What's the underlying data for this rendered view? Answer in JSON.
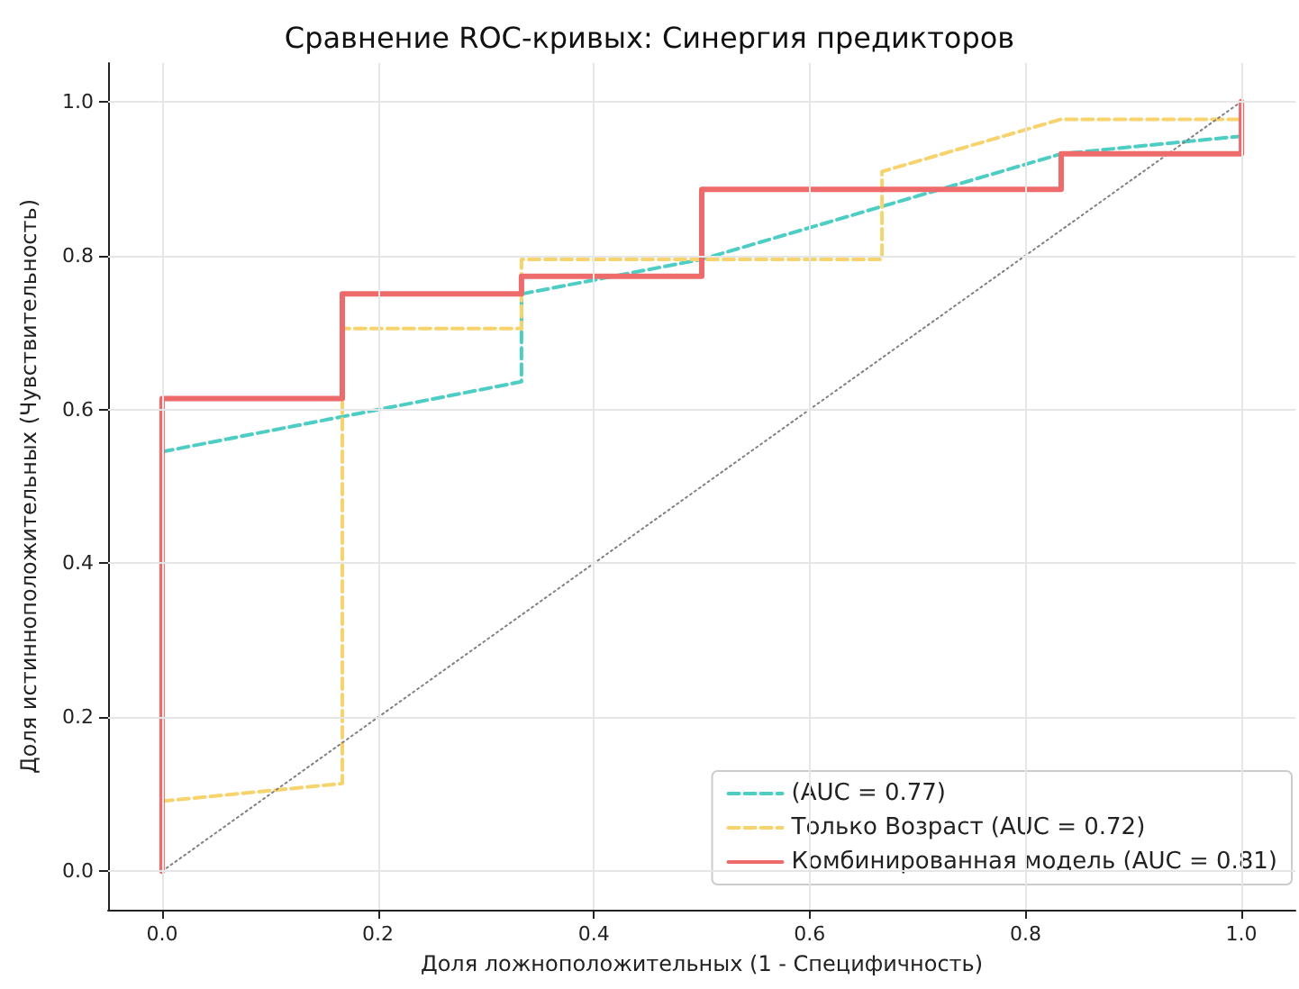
{
  "chart_data": {
    "type": "line",
    "title": "Сравнение ROC-кривых: Синергия предикторов",
    "xlabel": "Доля ложноположительных (1 - Специфичность)",
    "ylabel": "Доля истинноположительных (Чувствительность)",
    "series": [
      {
        "name": "(AUC = 0.77)",
        "color": "#4ecdc4",
        "line_style": "dashed",
        "x": [
          0,
          0.333,
          0.333,
          0.5,
          0.833,
          1
        ],
        "values": [
          0.545,
          0.636,
          0.75,
          0.795,
          0.932,
          0.955
        ]
      },
      {
        "name": "Только Возраст (AUC = 0.72)",
        "color": "#f7d36e",
        "line_style": "dashed",
        "x": [
          0,
          0.167,
          0.167,
          0.333,
          0.333,
          0.667,
          0.667,
          0.833,
          1
        ],
        "values": [
          0.091,
          0.114,
          0.705,
          0.705,
          0.795,
          0.795,
          0.909,
          0.977,
          0.977
        ]
      },
      {
        "name": "Комбинированная модель (AUC = 0.81)",
        "color": "#ee6b6b",
        "line_style": "solid",
        "x": [
          0,
          0,
          0.167,
          0.167,
          0.333,
          0.333,
          0.5,
          0.5,
          0.833,
          0.833,
          1,
          1
        ],
        "values": [
          0,
          0.614,
          0.614,
          0.75,
          0.75,
          0.773,
          0.773,
          0.886,
          0.886,
          0.932,
          0.932,
          1
        ]
      },
      {
        "color": "#808080",
        "line_style": "dotted",
        "x": [
          0,
          1
        ],
        "values": [
          0,
          1
        ]
      }
    ],
    "xlim": [
      -0.05,
      1.05
    ],
    "ylim": [
      -0.05,
      1.05
    ],
    "xticks": [
      {
        "value": 0,
        "label": "0.0"
      },
      {
        "value": 0.2,
        "label": "0.2"
      },
      {
        "value": 0.4,
        "label": "0.4"
      },
      {
        "value": 0.6,
        "label": "0.6"
      },
      {
        "value": 0.8,
        "label": "0.8"
      },
      {
        "value": 1,
        "label": "1.0"
      }
    ],
    "yticks": [
      {
        "value": 0,
        "label": "0.0"
      },
      {
        "value": 0.2,
        "label": "0.2"
      },
      {
        "value": 0.4,
        "label": "0.4"
      },
      {
        "value": 0.6,
        "label": "0.6"
      },
      {
        "value": 0.8,
        "label": "0.8"
      },
      {
        "value": 1,
        "label": "1.0"
      }
    ],
    "grid": true,
    "legend": "bottom right",
    "marker": "none"
  }
}
